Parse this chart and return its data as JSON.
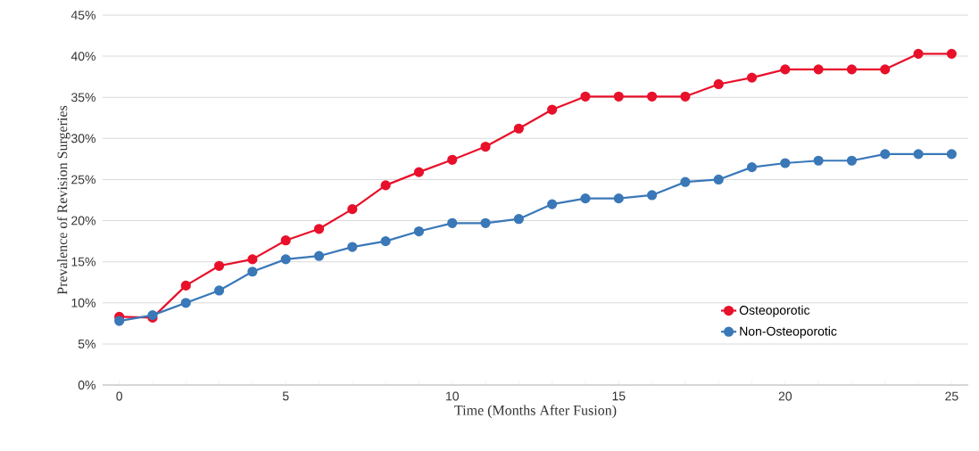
{
  "chart_data": {
    "type": "line",
    "xlabel": "Time (Months After Fusion)",
    "ylabel": "Prevalence of Revision Surgeries",
    "x": [
      0,
      1,
      2,
      3,
      4,
      5,
      6,
      7,
      8,
      9,
      10,
      11,
      12,
      13,
      14,
      15,
      16,
      17,
      18,
      19,
      20,
      21,
      22,
      23,
      24,
      25
    ],
    "series": [
      {
        "name": "Osteoporotic",
        "color": "#e8102a",
        "values": [
          8.3,
          8.2,
          12.1,
          14.5,
          15.3,
          17.6,
          19.0,
          21.4,
          24.3,
          25.9,
          27.4,
          29.0,
          31.2,
          33.5,
          35.1,
          35.1,
          35.1,
          35.1,
          36.6,
          37.4,
          38.4,
          38.4,
          38.4,
          38.4,
          40.3,
          40.3
        ]
      },
      {
        "name": "Non-Osteoporotic",
        "color": "#3a78b8",
        "values": [
          7.8,
          8.5,
          10.0,
          11.5,
          13.8,
          15.3,
          15.7,
          16.8,
          17.5,
          18.7,
          19.7,
          19.7,
          20.2,
          22.0,
          22.7,
          22.7,
          23.1,
          24.7,
          25.0,
          26.5,
          27.0,
          27.3,
          27.3,
          28.1,
          28.1,
          28.1
        ]
      }
    ],
    "xlim": [
      -0.5,
      25.5
    ],
    "xticks": [
      0,
      5,
      10,
      15,
      20,
      25
    ],
    "ylim": [
      0,
      45
    ],
    "yticks": [
      {
        "value": 0,
        "label": "0%"
      },
      {
        "value": 5,
        "label": "5%"
      },
      {
        "value": 10,
        "label": "10%"
      },
      {
        "value": 15,
        "label": "15%"
      },
      {
        "value": 20,
        "label": "20%"
      },
      {
        "value": 25,
        "label": "25%"
      },
      {
        "value": 30,
        "label": "30%"
      },
      {
        "value": 35,
        "label": "35%"
      },
      {
        "value": 40,
        "label": "40%"
      },
      {
        "value": 45,
        "label": "45%"
      }
    ],
    "grid": "y",
    "legend": "bottom right",
    "marker": "circle",
    "line_style": "solid"
  }
}
